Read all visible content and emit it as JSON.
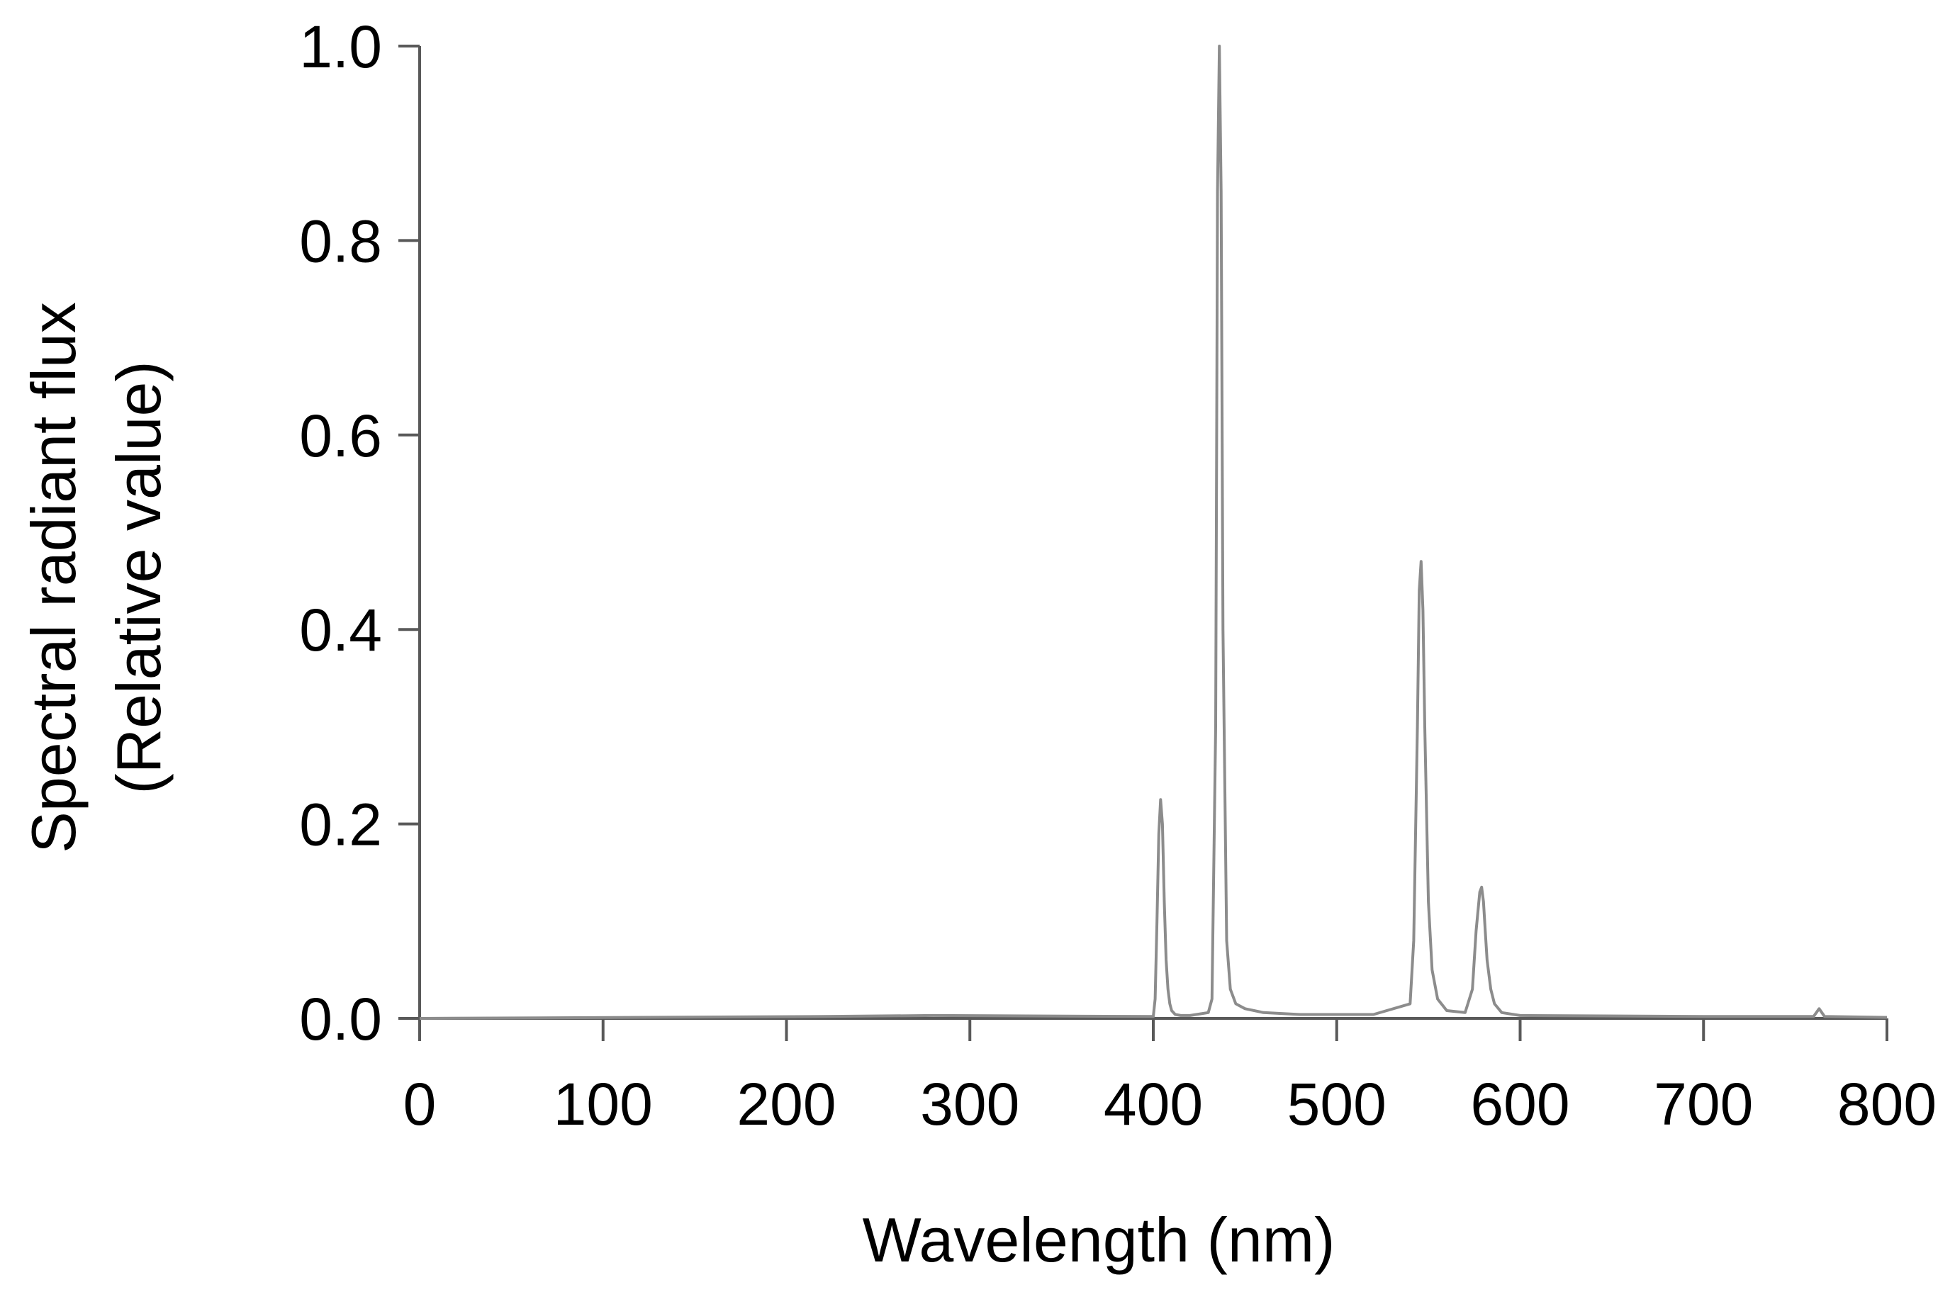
{
  "chart_data": {
    "type": "line",
    "title": "",
    "xlabel": "Wavelength (nm)",
    "ylabel_lines": [
      "Spectral radiant flux",
      "(Relative value)"
    ],
    "xlim": [
      0,
      800
    ],
    "ylim": [
      0,
      1.0
    ],
    "x_ticks": [
      "0",
      "100",
      "200",
      "300",
      "400",
      "500",
      "600",
      "700",
      "800"
    ],
    "y_ticks": [
      "0.0",
      "0.2",
      "0.4",
      "0.6",
      "0.8",
      "1.0"
    ],
    "grid": false,
    "legend": "none",
    "line_color": "#8c8c8c",
    "axis_color": "#595959",
    "series": [
      {
        "x": [
          0,
          220,
          280,
          400,
          401,
          402,
          403,
          404,
          405,
          406,
          407,
          408,
          409,
          410,
          412,
          415,
          420,
          430,
          432,
          434,
          435,
          436,
          437,
          438,
          440,
          442,
          445,
          450,
          460,
          480,
          500,
          520,
          540,
          542,
          544,
          545,
          546,
          547,
          548,
          550,
          552,
          555,
          560,
          570,
          574,
          576,
          578,
          579,
          580,
          581,
          582,
          584,
          586,
          590,
          600,
          700,
          760,
          763,
          766,
          800
        ],
        "y": [
          0,
          0.002,
          0.003,
          0.002,
          0.02,
          0.1,
          0.19,
          0.225,
          0.2,
          0.12,
          0.06,
          0.03,
          0.015,
          0.008,
          0.004,
          0.003,
          0.003,
          0.006,
          0.02,
          0.3,
          0.85,
          1.0,
          0.85,
          0.4,
          0.08,
          0.03,
          0.015,
          0.01,
          0.006,
          0.004,
          0.004,
          0.004,
          0.015,
          0.08,
          0.3,
          0.44,
          0.47,
          0.42,
          0.3,
          0.12,
          0.05,
          0.02,
          0.008,
          0.006,
          0.03,
          0.09,
          0.13,
          0.135,
          0.12,
          0.09,
          0.06,
          0.03,
          0.015,
          0.006,
          0.003,
          0.002,
          0.002,
          0.01,
          0.002,
          0.001
        ]
      }
    ]
  }
}
